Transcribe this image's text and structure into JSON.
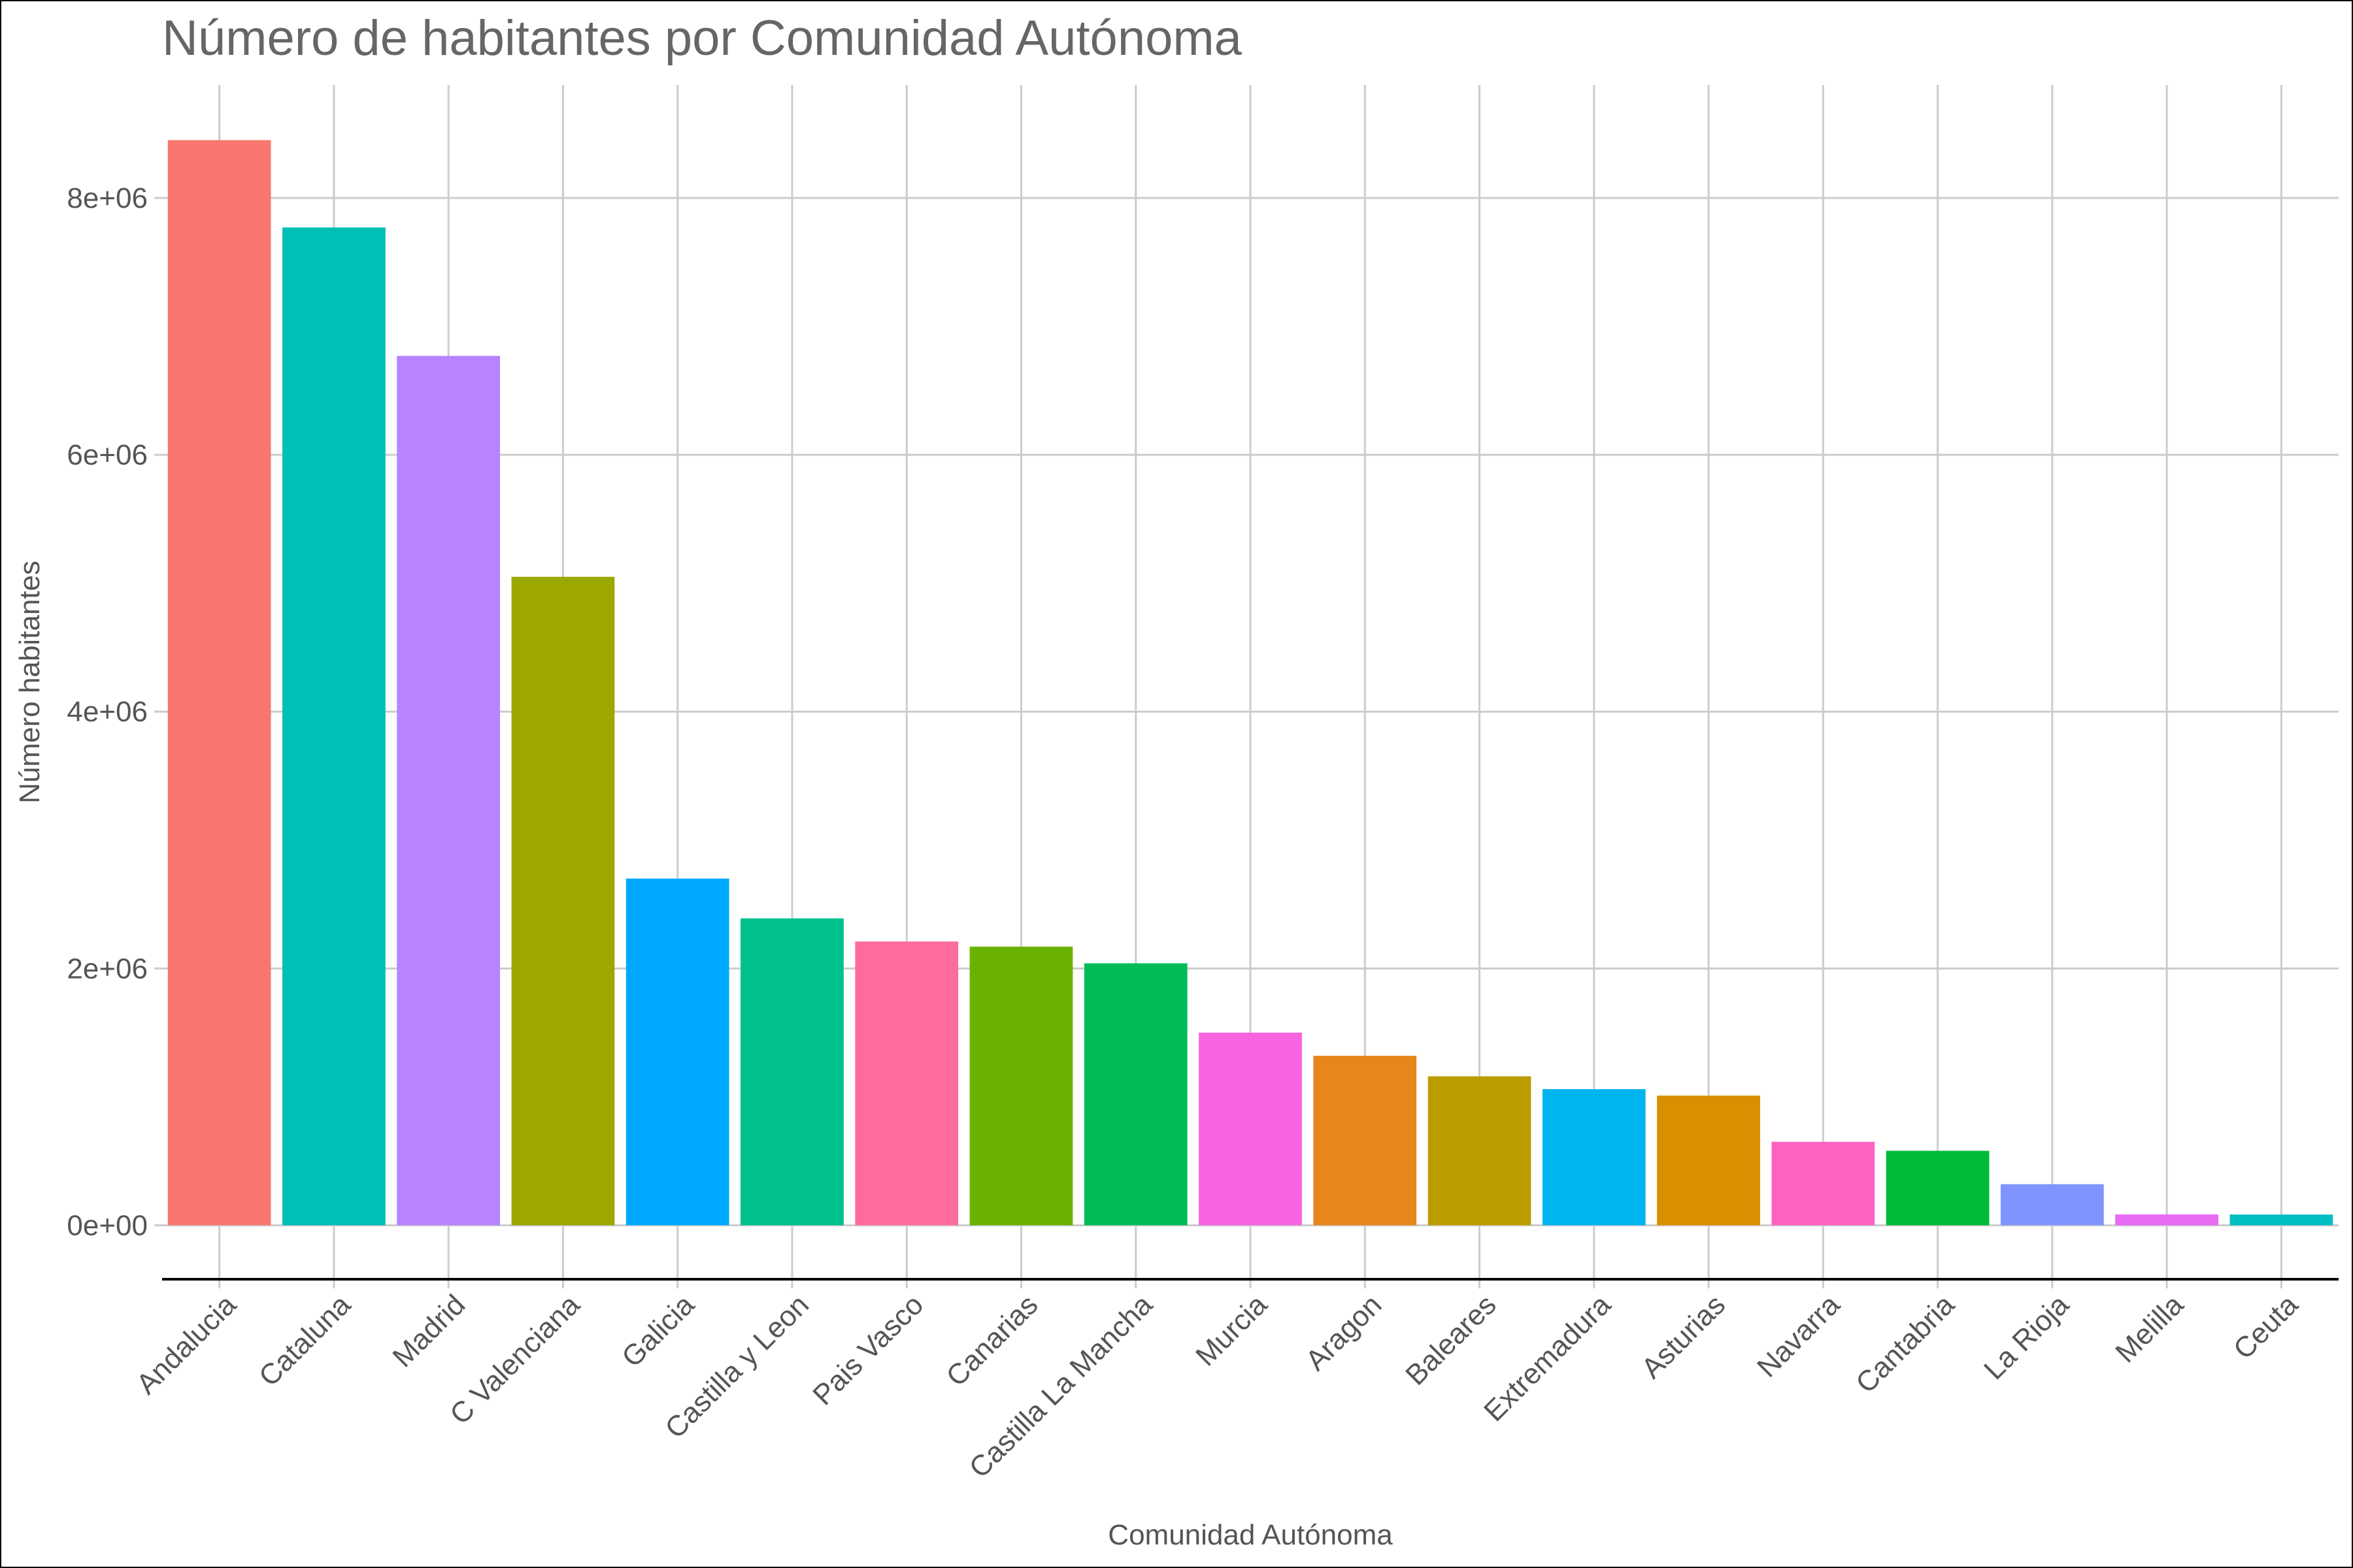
{
  "chart_data": {
    "type": "bar",
    "title": "Número de habitantes por Comunidad Autónoma",
    "xlabel": "Comunidad Autónoma",
    "ylabel": "Número habitantes",
    "ylim": [
      -420000,
      8880000
    ],
    "yticks": [
      0,
      2000000,
      4000000,
      6000000,
      8000000
    ],
    "ytick_labels": [
      "0e+00",
      "2e+06",
      "4e+06",
      "6e+06",
      "8e+06"
    ],
    "grid": true,
    "legend": "none",
    "categories": [
      "Andalucia",
      "Cataluna",
      "Madrid",
      "C Valenciana",
      "Galicia",
      "Castilla y Leon",
      "Pais Vasco",
      "Canarias",
      "Castilla La Mancha",
      "Murcia",
      "Aragon",
      "Baleares",
      "Extremadura",
      "Asturias",
      "Navarra",
      "Cantabria",
      "La Rioja",
      "Melilla",
      "Ceuta"
    ],
    "values": [
      8450000,
      7770000,
      6770000,
      5050000,
      2700000,
      2390000,
      2210000,
      2170000,
      2040000,
      1500000,
      1320000,
      1160000,
      1060000,
      1010000,
      650000,
      580000,
      320000,
      85000,
      84000
    ],
    "colors": [
      "#F8766D",
      "#00BFB4",
      "#B983FF",
      "#9CA700",
      "#00A9FF",
      "#00C08D",
      "#FF6C9C",
      "#6BB100",
      "#00BC56",
      "#F763E0",
      "#E7861B",
      "#BB9D00",
      "#00B4EF",
      "#D89000",
      "#FF61C3",
      "#00BA38",
      "#8094FF",
      "#E76BF3",
      "#00BFC4"
    ]
  }
}
